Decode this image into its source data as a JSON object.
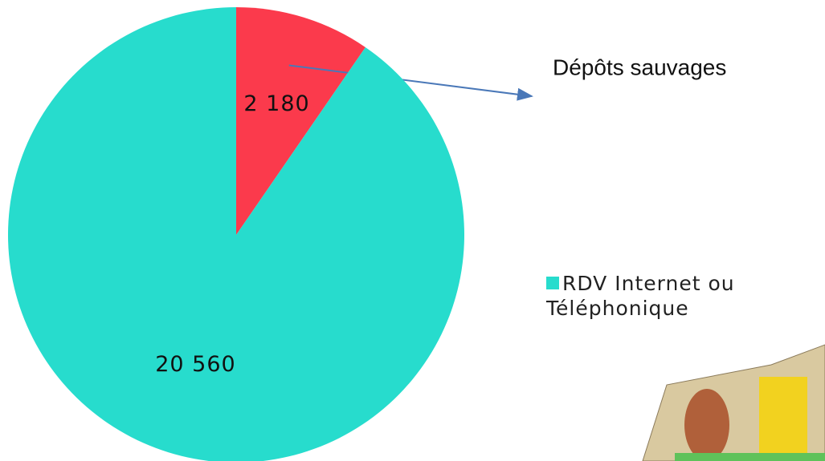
{
  "chart_data": {
    "type": "pie",
    "categories": [
      "Dépôts sauvages",
      "RDV Internet ou Téléphonique"
    ],
    "values": [
      2180,
      20560
    ],
    "value_labels": [
      "2 180",
      "20 560"
    ],
    "colors": [
      "#fb3a4c",
      "#27dccd"
    ]
  }
}
